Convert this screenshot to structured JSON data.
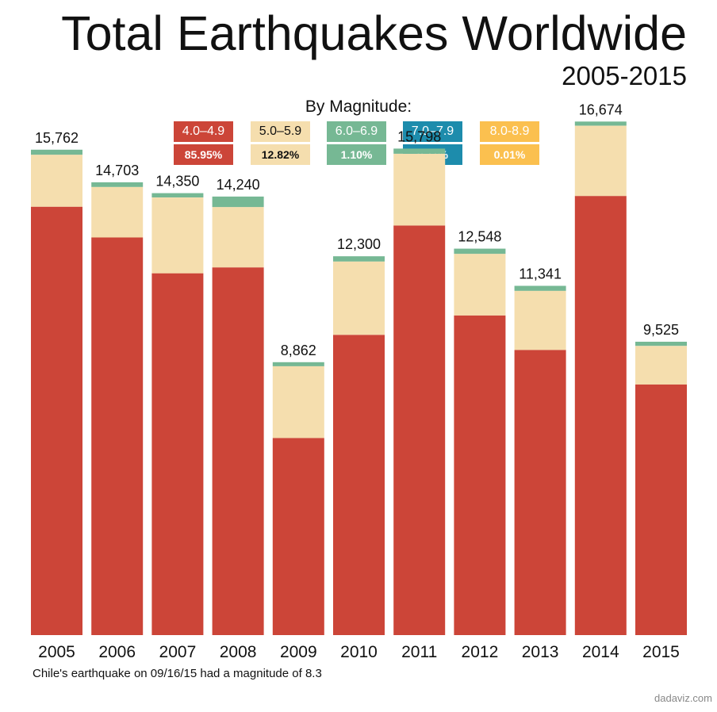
{
  "header": {
    "title": "Total Earthquakes Worldwide",
    "subtitle": "2005-2015"
  },
  "legend": {
    "title": "By Magnitude:",
    "items": [
      {
        "range": "4.0–4.9",
        "pct": "85.95%",
        "color": "#cc4538",
        "text_color": "#ffffff"
      },
      {
        "range": "5.0–5.9",
        "pct": "12.82%",
        "color": "#f5deae",
        "text_color": "#111111"
      },
      {
        "range": "6.0–6.9",
        "pct": "1.10%",
        "color": "#76b894",
        "text_color": "#ffffff"
      },
      {
        "range": "7.0–7.9",
        "pct": "0.11%",
        "color": "#1d8cac",
        "text_color": "#ffffff"
      },
      {
        "range": "8.0-8.9",
        "pct": "0.01%",
        "color": "#fbc04f",
        "text_color": "#ffffff"
      }
    ]
  },
  "chart_data": {
    "type": "bar",
    "stacked": true,
    "categories": [
      "2005",
      "2006",
      "2007",
      "2008",
      "2009",
      "2010",
      "2011",
      "2012",
      "2013",
      "2014",
      "2015"
    ],
    "totals": [
      15762,
      14703,
      14350,
      14240,
      8862,
      12300,
      15798,
      12548,
      11341,
      16674,
      9525
    ],
    "total_labels": [
      "15,762",
      "14,703",
      "14,350",
      "14,240",
      "8,862",
      "12,300",
      "15,798",
      "12,548",
      "11,341",
      "16,674",
      "9,525"
    ],
    "series": [
      {
        "name": "4.0–4.9",
        "color": "#cc4538",
        "values": [
          13910,
          12910,
          11750,
          11940,
          6400,
          9750,
          13300,
          10380,
          9260,
          14260,
          8140
        ]
      },
      {
        "name": "5.0–5.9",
        "color": "#f5deae",
        "values": [
          1690,
          1640,
          2460,
          1960,
          2330,
          2380,
          2330,
          2000,
          1920,
          2280,
          1250
        ]
      },
      {
        "name": "6.0–6.9",
        "color": "#76b894",
        "values": [
          162,
          153,
          140,
          340,
          132,
          170,
          168,
          168,
          161,
          134,
          135
        ]
      }
    ],
    "ylim": [
      0,
      19000
    ]
  },
  "footnote": "Chile's  earthquake on 09/16/15 had a magnitude of 8.3",
  "credit": "dadaviz.com"
}
